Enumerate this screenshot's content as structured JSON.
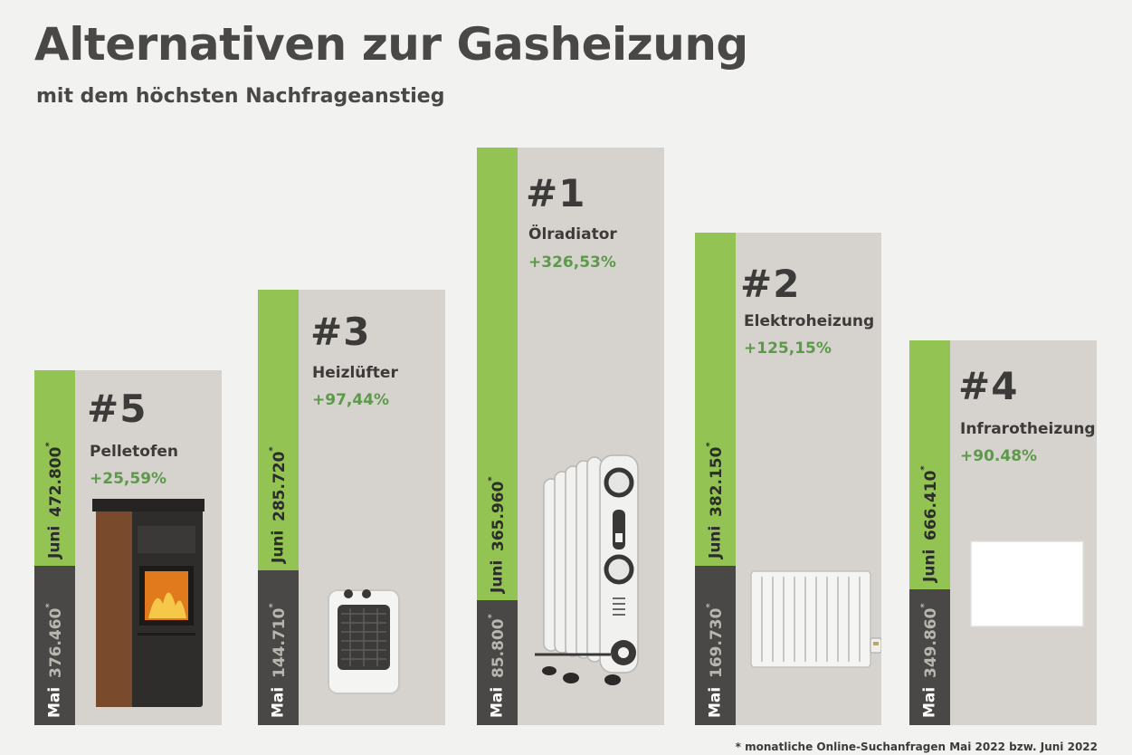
{
  "title": "Alternativen zur Gasheizung",
  "subtitle": "mit dem höchsten Nachfrageanstieg",
  "footnote": "* monatliche Online-Suchanfragen Mai 2022 bzw. Juni 2022",
  "colors": {
    "green": "#92c353",
    "dark": "#4a4846",
    "panel": "#d6d3ce",
    "pct": "#5c9a4a"
  },
  "labels": {
    "juni": "Juni",
    "mai": "Mai",
    "star": "*"
  },
  "chart_data": {
    "type": "bar",
    "categories": [
      "Pelletofen",
      "Heizlüfter",
      "Ölradiator",
      "Elektroheizung",
      "Infrarotheizung"
    ],
    "ranks": [
      "#5",
      "#3",
      "#1",
      "#2",
      "#4"
    ],
    "series": [
      {
        "name": "Mai",
        "values": [
          376460,
          144710,
          85800,
          169730,
          349860
        ],
        "labels": [
          "376.460",
          "144.710",
          "85.800",
          "169.730",
          "349.860"
        ]
      },
      {
        "name": "Juni",
        "values": [
          472800,
          285720,
          365960,
          382150,
          666410
        ],
        "labels": [
          "472.800",
          "285.720",
          "365.960",
          "382.150",
          "666.410"
        ]
      }
    ],
    "change": [
      "+25,59%",
      "+97,44%",
      "+326,53%",
      "+125,15%",
      "+90.48%"
    ],
    "icons": [
      "pellet-stove-icon",
      "fan-heater-icon",
      "oil-radiator-icon",
      "electric-heater-icon",
      "infrared-panel-icon"
    ]
  }
}
